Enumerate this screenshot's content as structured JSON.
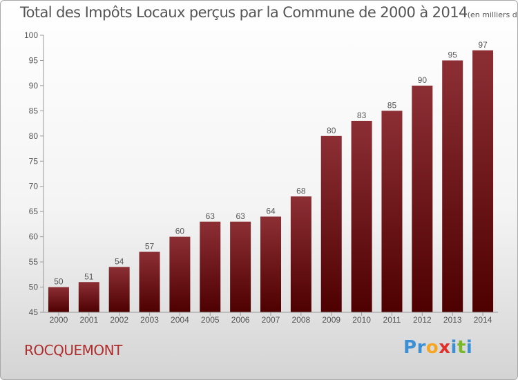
{
  "header": {
    "title": "Total des Impôts Locaux perçus par la Commune de 2000 à 2014",
    "unit": "(en milliers d'€)"
  },
  "footer": {
    "commune": "ROCQUEMONT",
    "logo": [
      {
        "char": "P",
        "color": "#3b8fd4"
      },
      {
        "char": "r",
        "color": "#3b8fd4"
      },
      {
        "char": "o",
        "color": "#f5a623"
      },
      {
        "char": "x",
        "color": "#e0302a"
      },
      {
        "char": "i",
        "color": "#3b8fd4"
      },
      {
        "char": "t",
        "color": "#7ab829"
      },
      {
        "char": "i",
        "color": "#3b8fd4"
      }
    ]
  },
  "colors": {
    "bar_top": "#8c2f35",
    "bar_bottom": "#4e0000",
    "axis": "#999999"
  },
  "chart_data": {
    "type": "bar",
    "title": "Total des Impôts Locaux perçus par la Commune de 2000 à 2014",
    "xlabel": "",
    "ylabel": "",
    "categories": [
      "2000",
      "2001",
      "2002",
      "2003",
      "2004",
      "2005",
      "2006",
      "2007",
      "2008",
      "2009",
      "2010",
      "2011",
      "2012",
      "2013",
      "2014"
    ],
    "values": [
      50,
      51,
      54,
      57,
      60,
      63,
      63,
      64,
      68,
      80,
      83,
      85,
      90,
      95,
      97
    ],
    "ylim": [
      45,
      100
    ],
    "yticks": [
      45,
      50,
      55,
      60,
      65,
      70,
      75,
      80,
      85,
      90,
      95,
      100
    ],
    "grid": false
  }
}
